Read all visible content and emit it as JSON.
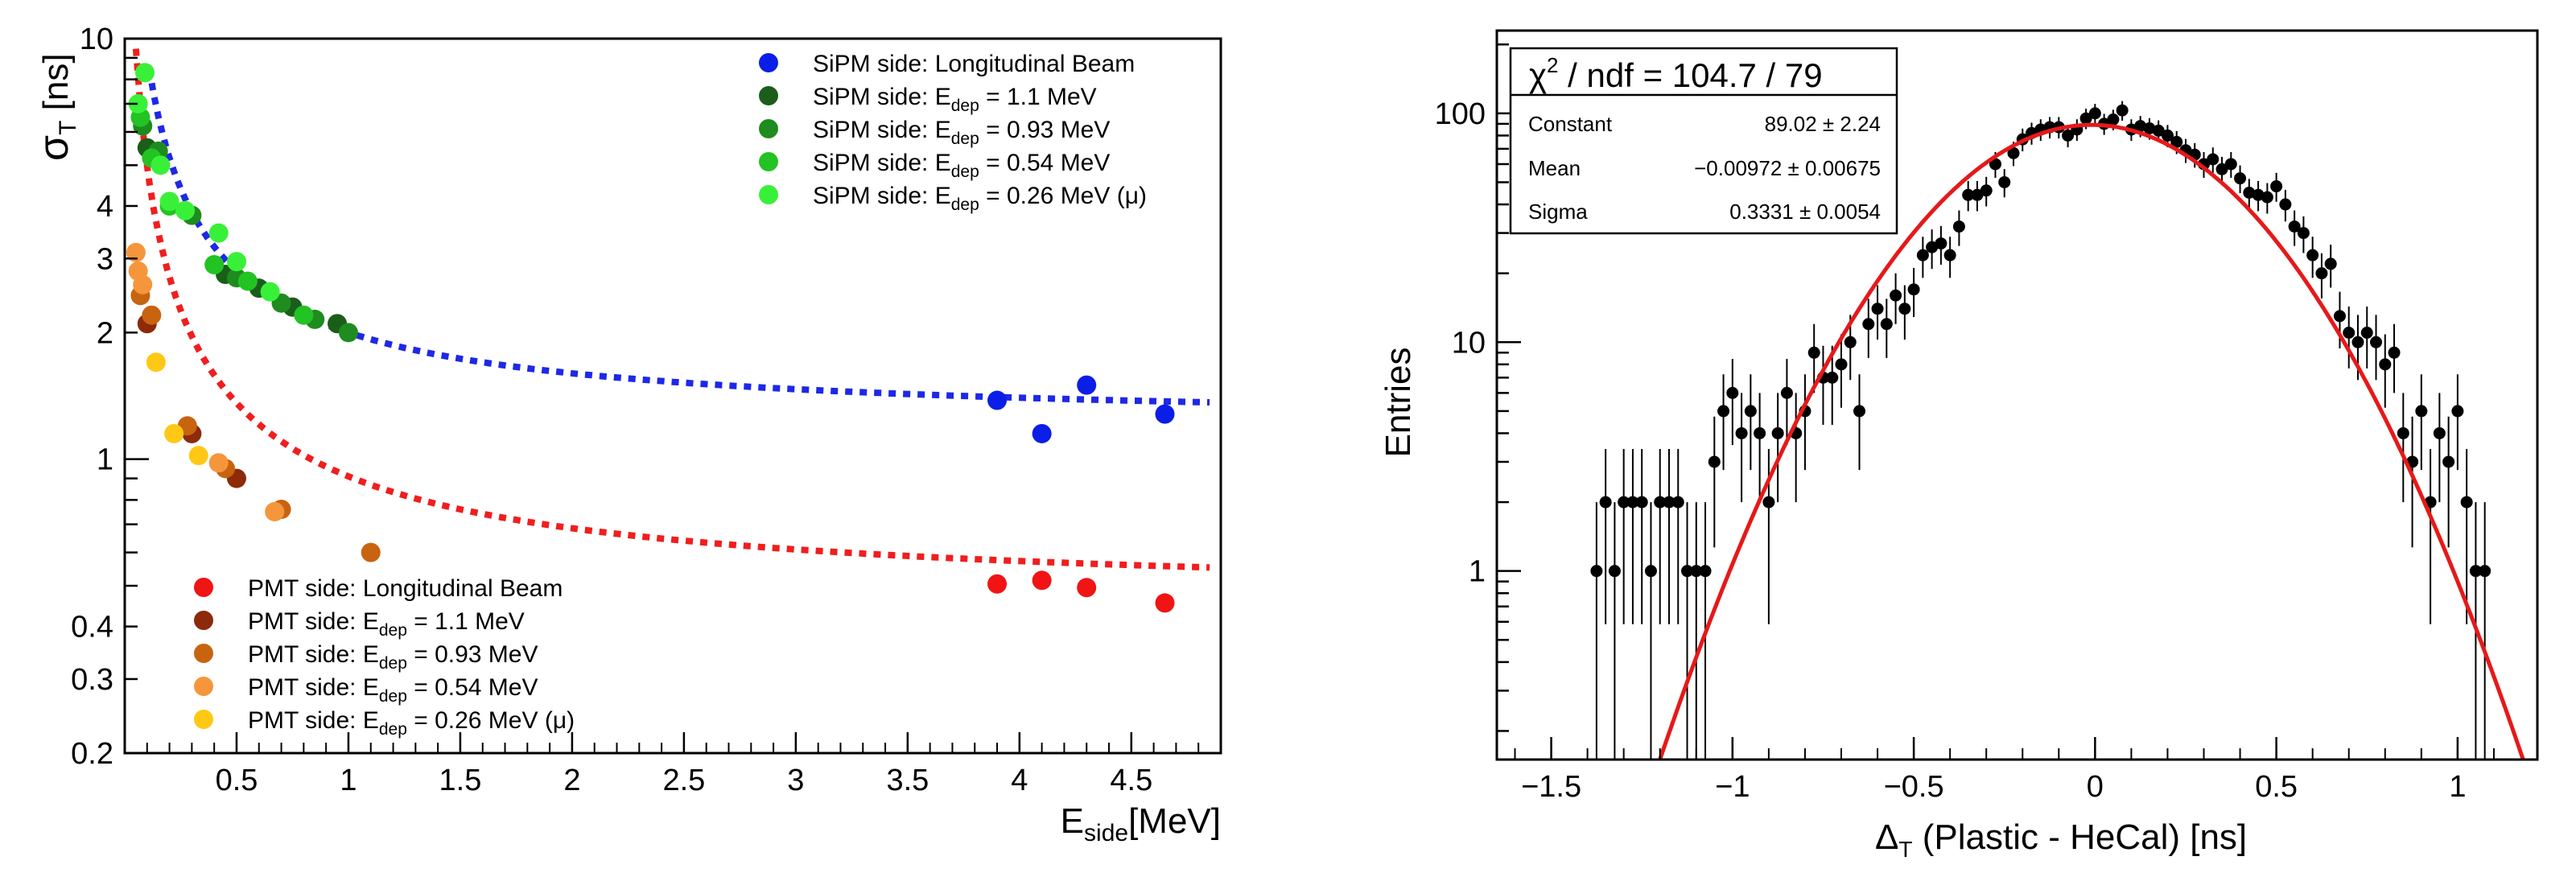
{
  "chart_data": [
    {
      "type": "scatter",
      "panel": "left",
      "xlabel": {
        "main": "E",
        "sub": "side",
        "rest": "[MeV]"
      },
      "ylabel": {
        "main": "σ",
        "sub": "T",
        "rest": " [ns]"
      },
      "xlim": [
        0,
        4.9
      ],
      "ylim": [
        0.2,
        10
      ],
      "yscale": "log",
      "xticks": [
        0.5,
        1,
        1.5,
        2,
        2.5,
        3,
        3.5,
        4,
        4.5
      ],
      "xtick_labels": [
        "0.5",
        "1",
        "1.5",
        "2",
        "2.5",
        "3",
        "3.5",
        "4",
        "4.5"
      ],
      "yticks": [
        0.2,
        0.3,
        0.4,
        1,
        2,
        3,
        4,
        10
      ],
      "ytick_labels": [
        "0.2",
        "0.3",
        "0.4",
        "1",
        "2",
        "3",
        "4",
        "10"
      ],
      "legend_top": [
        {
          "pre": "SiPM side: Longitudinal Beam",
          "color": "#0b1ee8"
        },
        {
          "pre": "SiPM side: E",
          "sub": "dep",
          "post": " = 1.1 MeV",
          "color": "#1a5e1a"
        },
        {
          "pre": "SiPM side: E",
          "sub": "dep",
          "post": " = 0.93 MeV",
          "color": "#1e8c1e"
        },
        {
          "pre": "SiPM side: E",
          "sub": "dep",
          "post": " = 0.54 MeV",
          "color": "#22c322"
        },
        {
          "pre": "SiPM side: E",
          "sub": "dep",
          "post": " = 0.26 MeV (μ)",
          "color": "#39f039"
        }
      ],
      "legend_bottom": [
        {
          "pre": "PMT side: Longitudinal Beam",
          "color": "#f01414"
        },
        {
          "pre": "PMT side: E",
          "sub": "dep",
          "post": " = 1.1 MeV",
          "color": "#8c2a0a"
        },
        {
          "pre": "PMT side: E",
          "sub": "dep",
          "post": " = 0.93 MeV",
          "color": "#c8640f"
        },
        {
          "pre": "PMT side: E",
          "sub": "dep",
          "post": " = 0.54 MeV",
          "color": "#f5963c"
        },
        {
          "pre": "PMT side: E",
          "sub": "dep",
          "post": " = 0.26 MeV (μ)",
          "color": "#ffc814"
        }
      ],
      "series": [
        {
          "name": "SiPM side: Longitudinal Beam",
          "color": "#0b1ee8",
          "points": [
            [
              3.9,
              1.38
            ],
            [
              4.1,
              1.15
            ],
            [
              4.3,
              1.5
            ],
            [
              4.65,
              1.28
            ]
          ]
        },
        {
          "name": "SiPM side: E_dep = 1.1 MeV",
          "color": "#1a5e1a",
          "points": [
            [
              0.1,
              5.5
            ],
            [
              0.45,
              2.75
            ],
            [
              0.6,
              2.55
            ],
            [
              0.75,
              2.3
            ],
            [
              0.95,
              2.1
            ]
          ]
        },
        {
          "name": "SiPM side: E_dep = 0.93 MeV",
          "color": "#1e8c1e",
          "points": [
            [
              0.08,
              6.2
            ],
            [
              0.15,
              5.4
            ],
            [
              0.3,
              3.8
            ],
            [
              0.5,
              2.7
            ],
            [
              0.7,
              2.35
            ],
            [
              0.85,
              2.15
            ],
            [
              1.0,
              2.0
            ]
          ]
        },
        {
          "name": "SiPM side: E_dep = 0.54 MeV",
          "color": "#22c322",
          "points": [
            [
              0.07,
              6.5
            ],
            [
              0.12,
              5.2
            ],
            [
              0.2,
              4.0
            ],
            [
              0.4,
              2.9
            ],
            [
              0.55,
              2.65
            ],
            [
              0.8,
              2.2
            ]
          ]
        },
        {
          "name": "SiPM side: E_dep = 0.26 MeV (μ)",
          "color": "#39f039",
          "points": [
            [
              0.06,
              7.0
            ],
            [
              0.09,
              8.3
            ],
            [
              0.16,
              5.0
            ],
            [
              0.2,
              4.1
            ],
            [
              0.27,
              3.9
            ],
            [
              0.42,
              3.45
            ],
            [
              0.5,
              2.95
            ],
            [
              0.65,
              2.5
            ]
          ]
        },
        {
          "name": "PMT side: Longitudinal Beam",
          "color": "#f01414",
          "points": [
            [
              3.9,
              0.505
            ],
            [
              4.1,
              0.515
            ],
            [
              4.3,
              0.495
            ],
            [
              4.65,
              0.455
            ]
          ]
        },
        {
          "name": "PMT side: E_dep = 1.1 MeV",
          "color": "#8c2a0a",
          "points": [
            [
              0.1,
              2.1
            ],
            [
              0.3,
              1.15
            ],
            [
              0.5,
              0.9
            ]
          ]
        },
        {
          "name": "PMT side: E_dep = 0.93 MeV",
          "color": "#c8640f",
          "points": [
            [
              0.07,
              2.45
            ],
            [
              0.12,
              2.2
            ],
            [
              0.28,
              1.2
            ],
            [
              0.45,
              0.95
            ],
            [
              0.7,
              0.76
            ],
            [
              1.1,
              0.6
            ]
          ]
        },
        {
          "name": "PMT side: E_dep = 0.54 MeV",
          "color": "#f5963c",
          "points": [
            [
              0.05,
              3.1
            ],
            [
              0.06,
              2.8
            ],
            [
              0.08,
              2.6
            ],
            [
              0.42,
              0.98
            ],
            [
              0.67,
              0.75
            ]
          ]
        },
        {
          "name": "PMT side: E_dep = 0.26 MeV (μ)",
          "color": "#ffc814",
          "points": [
            [
              0.14,
              1.7
            ],
            [
              0.22,
              1.15
            ],
            [
              0.33,
              1.02
            ]
          ]
        }
      ],
      "fits": [
        {
          "name": "SiPM fit",
          "color": "#1e28e6",
          "a": 1.2,
          "b": 0.8
        },
        {
          "name": "PMT fit",
          "color": "#f01e1e",
          "a": 0.46,
          "b": 0.45
        }
      ]
    },
    {
      "type": "histogram_with_fit",
      "panel": "right",
      "xlabel": {
        "main": "Δ",
        "sub": "T",
        "rest": " (Plastic - HeCal) [ns]"
      },
      "ylabel": "Entries",
      "xlim": [
        -1.65,
        1.22
      ],
      "ylim": [
        0.15,
        230
      ],
      "yscale": "log",
      "xticks": [
        -1.5,
        -1,
        -0.5,
        0,
        0.5,
        1
      ],
      "xtick_labels": [
        "−1.5",
        "−1",
        "−0.5",
        "0",
        "0.5",
        "1"
      ],
      "yticks": [
        1,
        10,
        100
      ],
      "ytick_labels": [
        "1",
        "10",
        "100"
      ],
      "stats": {
        "chi2": {
          "pre": "χ",
          "sup": "2",
          "post": " / ndf = 104.7 / 79"
        },
        "rows": [
          {
            "label": "Constant",
            "value": "89.02 ± 2.24"
          },
          {
            "label": "Mean",
            "value": "−0.00972 ± 0.00675"
          },
          {
            "label": "Sigma",
            "value": "0.3331 ± 0.0054"
          }
        ]
      },
      "fit": {
        "constant": 89.02,
        "mean": -0.00972,
        "sigma": 0.3331,
        "color": "#e61919"
      },
      "points": [
        [
          -1.375,
          1
        ],
        [
          -1.35,
          2
        ],
        [
          -1.325,
          1
        ],
        [
          -1.3,
          2
        ],
        [
          -1.275,
          2
        ],
        [
          -1.25,
          2
        ],
        [
          -1.225,
          1
        ],
        [
          -1.2,
          2
        ],
        [
          -1.175,
          2
        ],
        [
          -1.15,
          2
        ],
        [
          -1.125,
          1
        ],
        [
          -1.1,
          1
        ],
        [
          -1.075,
          1
        ],
        [
          -1.05,
          3
        ],
        [
          -1.025,
          5
        ],
        [
          -1.0,
          6
        ],
        [
          -0.975,
          4
        ],
        [
          -0.95,
          5
        ],
        [
          -0.925,
          4
        ],
        [
          -0.9,
          2
        ],
        [
          -0.875,
          4
        ],
        [
          -0.85,
          6
        ],
        [
          -0.825,
          4
        ],
        [
          -0.8,
          5
        ],
        [
          -0.775,
          9
        ],
        [
          -0.75,
          7
        ],
        [
          -0.725,
          7
        ],
        [
          -0.7,
          8
        ],
        [
          -0.675,
          10
        ],
        [
          -0.65,
          5
        ],
        [
          -0.625,
          12
        ],
        [
          -0.6,
          14
        ],
        [
          -0.575,
          12
        ],
        [
          -0.55,
          16
        ],
        [
          -0.525,
          14
        ],
        [
          -0.5,
          17
        ],
        [
          -0.475,
          24
        ],
        [
          -0.45,
          26
        ],
        [
          -0.425,
          27
        ],
        [
          -0.4,
          24
        ],
        [
          -0.375,
          32
        ],
        [
          -0.35,
          44
        ],
        [
          -0.325,
          44
        ],
        [
          -0.3,
          46
        ],
        [
          -0.275,
          60
        ],
        [
          -0.25,
          50
        ],
        [
          -0.225,
          67
        ],
        [
          -0.2,
          77
        ],
        [
          -0.175,
          82
        ],
        [
          -0.15,
          85
        ],
        [
          -0.125,
          87
        ],
        [
          -0.1,
          87
        ],
        [
          -0.075,
          80
        ],
        [
          -0.05,
          85
        ],
        [
          -0.025,
          95
        ],
        [
          0.0,
          100
        ],
        [
          0.025,
          90
        ],
        [
          0.05,
          94
        ],
        [
          0.075,
          103
        ],
        [
          0.1,
          85
        ],
        [
          0.125,
          88
        ],
        [
          0.15,
          86
        ],
        [
          0.175,
          84
        ],
        [
          0.2,
          80
        ],
        [
          0.225,
          75
        ],
        [
          0.25,
          69
        ],
        [
          0.275,
          66
        ],
        [
          0.3,
          60
        ],
        [
          0.325,
          63
        ],
        [
          0.35,
          57
        ],
        [
          0.375,
          60
        ],
        [
          0.4,
          52
        ],
        [
          0.425,
          45
        ],
        [
          0.45,
          44
        ],
        [
          0.475,
          43
        ],
        [
          0.5,
          48
        ],
        [
          0.525,
          40
        ],
        [
          0.55,
          32
        ],
        [
          0.575,
          30
        ],
        [
          0.6,
          24
        ],
        [
          0.625,
          20
        ],
        [
          0.65,
          22
        ],
        [
          0.675,
          13
        ],
        [
          0.7,
          11
        ],
        [
          0.725,
          10
        ],
        [
          0.75,
          11
        ],
        [
          0.775,
          10
        ],
        [
          0.8,
          8
        ],
        [
          0.825,
          9
        ],
        [
          0.85,
          4
        ],
        [
          0.875,
          3
        ],
        [
          0.9,
          5
        ],
        [
          0.925,
          2
        ],
        [
          0.95,
          4
        ],
        [
          0.975,
          3
        ],
        [
          1.0,
          5
        ],
        [
          1.025,
          2
        ],
        [
          1.05,
          1
        ],
        [
          1.075,
          1
        ]
      ]
    }
  ]
}
